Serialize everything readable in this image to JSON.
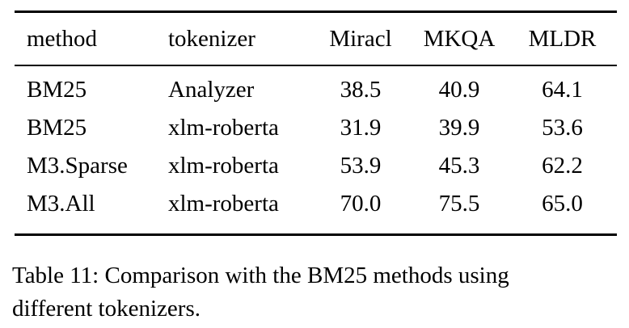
{
  "table": {
    "headers": {
      "method": "method",
      "tokenizer": "tokenizer",
      "miracl": "Miracl",
      "mkqa": "MKQA",
      "mldr": "MLDR"
    },
    "rows": [
      {
        "method": "BM25",
        "tokenizer": "Analyzer",
        "miracl": "38.5",
        "mkqa": "40.9",
        "mldr": "64.1"
      },
      {
        "method": "BM25",
        "tokenizer": "xlm-roberta",
        "miracl": "31.9",
        "mkqa": "39.9",
        "mldr": "53.6"
      },
      {
        "method": "M3.Sparse",
        "tokenizer": "xlm-roberta",
        "miracl": "53.9",
        "mkqa": "45.3",
        "mldr": "62.2"
      },
      {
        "method": "M3.All",
        "tokenizer": "xlm-roberta",
        "miracl": "70.0",
        "mkqa": "75.5",
        "mldr": "65.0"
      }
    ]
  },
  "caption": {
    "line1": "Table 11: Comparison with the BM25 methods using",
    "line2": "different tokenizers."
  },
  "colors": {
    "text": "#000000",
    "background": "#ffffff",
    "rule": "#000000"
  },
  "chart_data": {
    "type": "table",
    "title": "Table 11: Comparison with the BM25 methods using different tokenizers.",
    "columns": [
      "method",
      "tokenizer",
      "Miracl",
      "MKQA",
      "MLDR"
    ],
    "rows": [
      [
        "BM25",
        "Analyzer",
        38.5,
        40.9,
        64.1
      ],
      [
        "BM25",
        "xlm-roberta",
        31.9,
        39.9,
        53.6
      ],
      [
        "M3.Sparse",
        "xlm-roberta",
        53.9,
        45.3,
        62.2
      ],
      [
        "M3.All",
        "xlm-roberta",
        70.0,
        75.5,
        65.0
      ]
    ]
  }
}
